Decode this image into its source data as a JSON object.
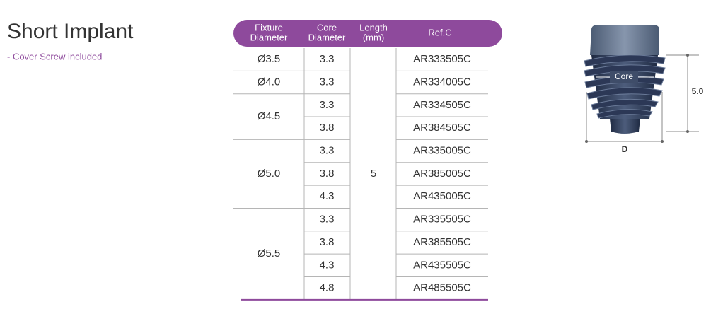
{
  "header": {
    "title": "Short Implant",
    "subtitle": "- Cover Screw included"
  },
  "table": {
    "headers": [
      [
        "Fixture",
        "Diameter"
      ],
      [
        "Core",
        "Diameter"
      ],
      [
        "Length",
        "(mm)"
      ],
      [
        "Ref.C"
      ]
    ],
    "length": "5",
    "groups": [
      {
        "diameter": "Ø3.5",
        "rows": [
          {
            "core": "3.3",
            "ref": "AR333505C"
          }
        ]
      },
      {
        "diameter": "Ø4.0",
        "rows": [
          {
            "core": "3.3",
            "ref": "AR334005C"
          }
        ]
      },
      {
        "diameter": "Ø4.5",
        "rows": [
          {
            "core": "3.3",
            "ref": "AR334505C"
          },
          {
            "core": "3.8",
            "ref": "AR384505C"
          }
        ]
      },
      {
        "diameter": "Ø5.0",
        "rows": [
          {
            "core": "3.3",
            "ref": "AR335005C"
          },
          {
            "core": "3.8",
            "ref": "AR385005C"
          },
          {
            "core": "4.3",
            "ref": "AR435005C"
          }
        ]
      },
      {
        "diameter": "Ø5.5",
        "rows": [
          {
            "core": "3.3",
            "ref": "AR335505C"
          },
          {
            "core": "3.8",
            "ref": "AR385505C"
          },
          {
            "core": "4.3",
            "ref": "AR435505C"
          },
          {
            "core": "4.8",
            "ref": "AR485505C"
          }
        ]
      }
    ]
  },
  "diagram": {
    "core_label": "Core",
    "length_label": "5.0",
    "diameter_label": "D"
  }
}
